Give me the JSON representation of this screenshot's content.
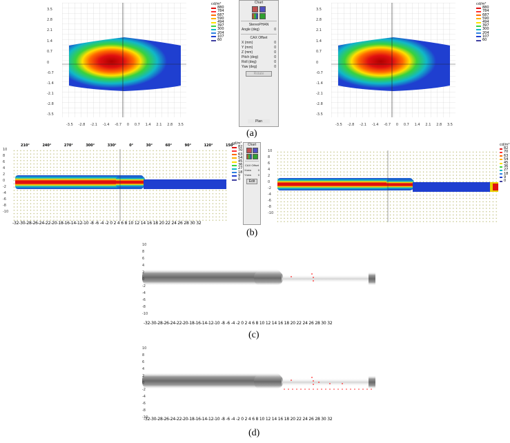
{
  "figure": {
    "captions": {
      "a": "(a)",
      "b": "(b)",
      "c": "(c)",
      "d": "(d)"
    },
    "unit": "cd/m²",
    "panel_a": {
      "y_ticks": [
        "3.5",
        "2.8",
        "2.1",
        "1.4",
        "0.7",
        "0",
        "-0.7",
        "-1.4",
        "-2.1",
        "-2.8",
        "-3.5"
      ],
      "x_ticks": [
        "-3.5",
        "-2.8",
        "-2.1",
        "-1.4",
        "-0.7",
        "0",
        "0.7",
        "1.4",
        "2.1",
        "2.8",
        "3.5"
      ],
      "legend_values": [
        "880",
        "784",
        "687",
        "590",
        "494",
        "397",
        "300",
        "204",
        "107",
        "60"
      ],
      "controls": {
        "chart_label": "Chart",
        "stereo_label": "StereoPHAN",
        "angle_label": "Angle (deg)",
        "angle_value": "0",
        "offset_label": "CAX Offset",
        "fields": [
          {
            "label": "X (mm)",
            "value": "0"
          },
          {
            "label": "Y (mm)",
            "value": "0"
          },
          {
            "label": "Z (mm)",
            "value": "0"
          },
          {
            "label": "Pitch (deg)",
            "value": "0"
          },
          {
            "label": "Roll (deg)",
            "value": "0"
          },
          {
            "label": "Yaw (deg)",
            "value": "0"
          }
        ],
        "button_label": "Rotate",
        "bottom_button": "Plan"
      }
    },
    "panel_b": {
      "angle_labels": [
        "210°",
        "240°",
        "270°",
        "300°",
        "330°",
        "0°",
        "30°",
        "60°",
        "90°",
        "120°",
        "150°"
      ],
      "y_ticks": [
        "10",
        "8",
        "6",
        "4",
        "2",
        "0",
        "-2",
        "-4",
        "-6",
        "-8",
        "-10"
      ],
      "x_labels": "-32-30-28-26-24-22-20-18-16-14-12-10 -8 -6 -4 -2 0 2 4 6 8 10 12 14 16 18 20 22 24 26 28 30 32",
      "legend_values": [
        "82",
        "70",
        "63",
        "54",
        "45",
        "36",
        "27",
        "18",
        "9",
        "0"
      ],
      "controls": {
        "chart_label": "Chart",
        "offset_label": "CAX Offset",
        "fields": [
          {
            "label": "Xnew",
            "value": "0"
          },
          {
            "label": "Ynew",
            "value": "0"
          }
        ],
        "button_label": "Edit"
      }
    },
    "panel_c": {
      "y_ticks": [
        "10",
        "8",
        "6",
        "4",
        "2",
        "0",
        "-2",
        "-4",
        "-6",
        "-8",
        "-10"
      ],
      "x_labels": "-32-30-28-26-24-22-20-18-16-14-12-10 -8 -6 -4 -2 0 2 4 6 8 10 12 14 16 18 20 22 24 26 28 30 32"
    },
    "panel_d": {
      "y_ticks": [
        "10",
        "8",
        "6",
        "4",
        "2",
        "0",
        "-2",
        "-4",
        "-6",
        "-8",
        "-10"
      ],
      "x_labels": "-32-30-28-26-24-22-20-18-16-14-12-10 -8 -6 -4 -2 0 2 4 6 8 10 12 14 16 18 20 22 24 26 28 30 32"
    }
  },
  "colors": {
    "grid_a": "#c8c8c8",
    "grid_b": "#b5b56a",
    "dose_red": "#e01010",
    "dose_blue": "#1f3fd0",
    "film_gray": "#7a7a7a",
    "marker_red": "#ff2020"
  }
}
